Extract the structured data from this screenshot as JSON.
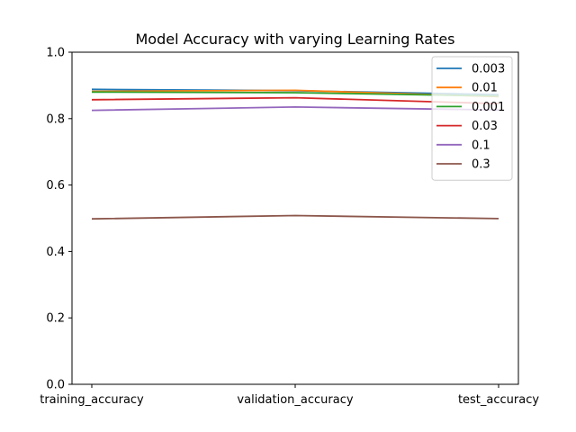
{
  "chart_data": {
    "type": "line",
    "title": "Model Accuracy with varying Learning Rates",
    "xlabel": "",
    "ylabel": "",
    "categories": [
      "training_accuracy",
      "validation_accuracy",
      "test_accuracy"
    ],
    "ylim": [
      0.0,
      1.0
    ],
    "yticks": [
      "0.0",
      "0.2",
      "0.4",
      "0.6",
      "0.8",
      "1.0"
    ],
    "grid": false,
    "legend_position": "top-right",
    "series": [
      {
        "name": "0.003",
        "color": "#1f77b4",
        "values": [
          0.888,
          0.884,
          0.872
        ]
      },
      {
        "name": "0.01",
        "color": "#ff7f0e",
        "values": [
          0.882,
          0.885,
          0.866
        ]
      },
      {
        "name": "0.001",
        "color": "#2ca02c",
        "values": [
          0.88,
          0.878,
          0.868
        ]
      },
      {
        "name": "0.03",
        "color": "#d62728",
        "values": [
          0.857,
          0.863,
          0.845
        ]
      },
      {
        "name": "0.1",
        "color": "#9467bd",
        "values": [
          0.825,
          0.835,
          0.826
        ]
      },
      {
        "name": "0.3",
        "color": "#8c564b",
        "values": [
          0.498,
          0.508,
          0.499
        ]
      }
    ]
  }
}
